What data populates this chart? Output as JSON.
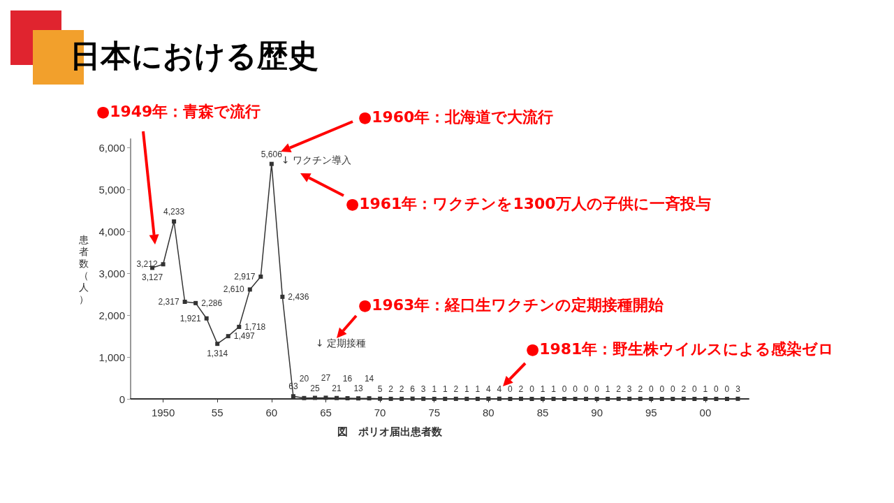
{
  "chart_data": {
    "type": "line",
    "title": "日本における歴史",
    "ylabel": "患者数（人）",
    "x": [
      1949,
      1950,
      1951,
      1952,
      1953,
      1954,
      1955,
      1956,
      1957,
      1958,
      1959,
      1960,
      1961,
      1962,
      1963,
      1964,
      1965,
      1966,
      1967,
      1968,
      1969,
      1970,
      1971,
      1972,
      1973,
      1974,
      1975,
      1976,
      1977,
      1978,
      1979,
      1980,
      1981,
      1982,
      1983,
      1984,
      1985,
      1986,
      1987,
      1988,
      1989,
      1990,
      1991,
      1992,
      1993,
      1994,
      1995,
      1996,
      1997,
      1998,
      1999,
      2000,
      2001,
      2002,
      2003
    ],
    "series": [
      {
        "color": "#333333",
        "values": [
          3127,
          3212,
          4233,
          2317,
          2286,
          1921,
          1314,
          1497,
          1718,
          2610,
          2917,
          5606,
          2436,
          63,
          20,
          25,
          27,
          21,
          16,
          13,
          14,
          5,
          2,
          2,
          6,
          3,
          1,
          1,
          2,
          1,
          1,
          4,
          4,
          0,
          2,
          0,
          1,
          1,
          0,
          0,
          0,
          0,
          1,
          2,
          3,
          2,
          0,
          0,
          0,
          2,
          0,
          1,
          0,
          0,
          3
        ],
        "value_labels": [
          "3,127",
          "3,212",
          "4,233",
          "2,317",
          "2,286",
          "1,921",
          "1,314",
          "1,497",
          "1,718",
          "2,610",
          "2,917",
          "5,606",
          "2,436",
          "63",
          "20",
          "25",
          "27",
          "21",
          "16",
          "13",
          "14",
          "5",
          "2",
          "2",
          "6",
          "3",
          "1",
          "1",
          "2",
          "1",
          "1",
          "4",
          "4",
          "0",
          "2",
          "0",
          "1",
          "1",
          "0",
          "0",
          "0",
          "0",
          "1",
          "2",
          "3",
          "2",
          "0",
          "0",
          "0",
          "2",
          "0",
          "1",
          "0",
          "0",
          "3"
        ]
      }
    ],
    "xlim": [
      1947,
      2004
    ],
    "xticks": [
      {
        "value": 1950,
        "label": "1950"
      },
      {
        "value": 1955,
        "label": "55"
      },
      {
        "value": 1960,
        "label": "60"
      },
      {
        "value": 1965,
        "label": "65"
      },
      {
        "value": 1970,
        "label": "70"
      },
      {
        "value": 1975,
        "label": "75"
      },
      {
        "value": 1980,
        "label": "80"
      },
      {
        "value": 1985,
        "label": "85"
      },
      {
        "value": 1990,
        "label": "90"
      },
      {
        "value": 1995,
        "label": "95"
      },
      {
        "value": 2000,
        "label": "00"
      }
    ],
    "ylim": [
      0,
      6200
    ],
    "yticks": [
      {
        "value": 0,
        "label": "0"
      },
      {
        "value": 1000,
        "label": "1,000"
      },
      {
        "value": 2000,
        "label": "2,000"
      },
      {
        "value": 3000,
        "label": "3,000"
      },
      {
        "value": 4000,
        "label": "4,000"
      },
      {
        "value": 5000,
        "label": "5,000"
      },
      {
        "value": 6000,
        "label": "6,000"
      }
    ],
    "grid": false,
    "marker": "square",
    "line_style": "solid",
    "annotations": [
      "●1949年：青森で流行",
      "●1960年：北海道で大流行",
      "●1961年：ワクチンを1300万人の子供に一斉投与",
      "●1963年：経口生ワクチンの定期接種開始",
      "●1981年：野生株ウイルスによる感染ゼロ",
      "図　ポリオ届出患者数",
      "↓ ワクチン導入",
      "↓ 定期接種"
    ]
  }
}
